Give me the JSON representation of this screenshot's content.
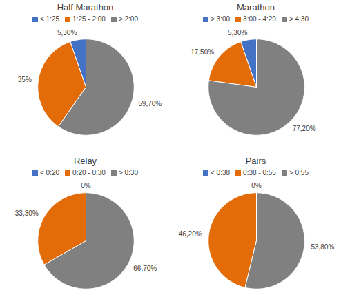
{
  "chart_data": [
    {
      "type": "pie",
      "title": "Half Marathon",
      "categories": [
        "< 1:25",
        "1:25 - 2:00",
        "> 2:00"
      ],
      "values": [
        5.3,
        35.0,
        59.7
      ],
      "value_labels": [
        "5,30%",
        "35%",
        "59,70%"
      ],
      "colors": [
        "#4472C4",
        "#E36C09",
        "#808080"
      ],
      "data_labels": true,
      "legend": "top"
    },
    {
      "type": "pie",
      "title": "Marathon",
      "categories": [
        "> 3:00",
        "3:00 - 4:29",
        "> 4:30"
      ],
      "values": [
        5.3,
        17.5,
        77.2
      ],
      "value_labels": [
        "5,30%",
        "17,50%",
        "77,20%"
      ],
      "colors": [
        "#4472C4",
        "#E36C09",
        "#808080"
      ],
      "data_labels": true,
      "legend": "top"
    },
    {
      "type": "pie",
      "title": "Relay",
      "categories": [
        "< 0:20",
        "0:20 - 0:30",
        "> 0:30"
      ],
      "values": [
        0.001,
        33.3,
        66.7
      ],
      "value_labels": [
        "0%",
        "33,30%",
        "66,70%"
      ],
      "colors": [
        "#4472C4",
        "#E36C09",
        "#808080"
      ],
      "data_labels": true,
      "legend": "top"
    },
    {
      "type": "pie",
      "title": "Pairs",
      "categories": [
        "< 0:38",
        "0:38 - 0:55",
        "> 0:55"
      ],
      "values": [
        0.001,
        46.2,
        53.8
      ],
      "value_labels": [
        "0%",
        "46,20%",
        "53,80%"
      ],
      "colors": [
        "#4472C4",
        "#E36C09",
        "#808080"
      ],
      "data_labels": true,
      "legend": "top"
    }
  ]
}
